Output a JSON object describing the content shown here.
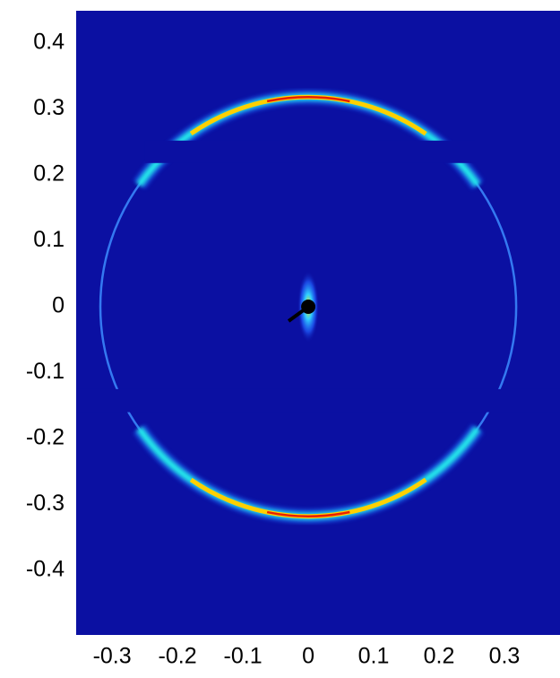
{
  "chart_data": {
    "type": "image",
    "xlim": [
      -0.355,
      0.385
    ],
    "ylim": [
      -0.498,
      0.449
    ],
    "xticks": [
      -0.3,
      -0.2,
      -0.1,
      0,
      0.1,
      0.2,
      0.3
    ],
    "yticks": [
      0.4,
      0.3,
      0.2,
      0.1,
      0,
      -0.1,
      -0.2,
      -0.3,
      -0.4
    ],
    "ring_radius": 0.318,
    "background_color": "#0b10a2",
    "ring_color": "#3c8cff"
  }
}
